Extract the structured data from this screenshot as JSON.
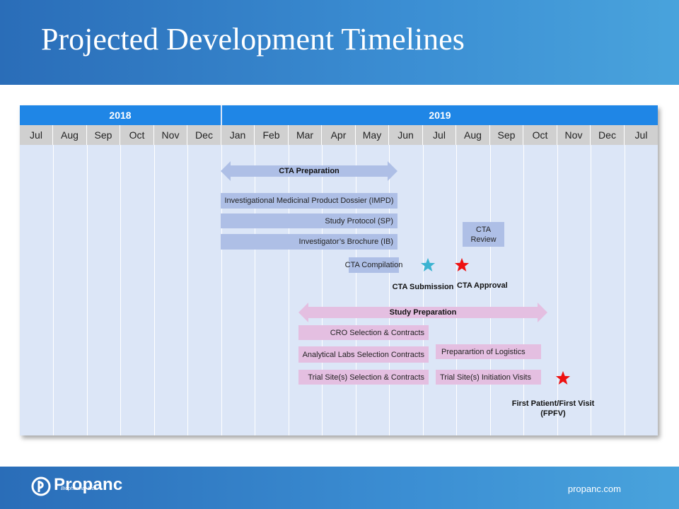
{
  "slide": {
    "title": "Projected Development Timelines",
    "website": "propanc.com",
    "logo_text": "Propanc",
    "logo_subtext": "Biopharma, Inc."
  },
  "timeline": {
    "years": [
      "2018",
      "2019"
    ],
    "months": [
      "Jul",
      "Aug",
      "Sep",
      "Oct",
      "Nov",
      "Dec",
      "Jan",
      "Feb",
      "Mar",
      "Apr",
      "May",
      "Jun",
      "Jul",
      "Aug",
      "Sep",
      "Oct",
      "Nov",
      "Dec",
      "Jul"
    ],
    "cta": {
      "preparation": "CTA Preparation",
      "impd": "Investigational Medicinal Product Dossier (IMPD)",
      "protocol": "Study Protocol (SP)",
      "brochure": "Investigator’s Brochure (IB)",
      "review_line1": "CTA",
      "review_line2": "Review",
      "compilation": "CTA Compilation",
      "submission": "CTA Submission",
      "approval": "CTA Approval"
    },
    "study": {
      "preparation": "Study Preparation",
      "cro": "CRO Selection & Contracts",
      "labs": "Analytical Labs Selection  Contracts",
      "logistics": "Preparartion of Logistics",
      "sites": "Trial Site(s) Selection & Contracts",
      "initiation": "Trial Site(s) Initiation Visits",
      "fpfv_line1": "First Patient/First Visit",
      "fpfv_line2": "(FPFV)"
    },
    "colors": {
      "year_bar": "#1f86e6",
      "cta_bars": "#aebfe6",
      "study_bars": "#e4bfe1",
      "submission_star": "#3bb3d1",
      "milestone_star": "#ee1111"
    }
  }
}
